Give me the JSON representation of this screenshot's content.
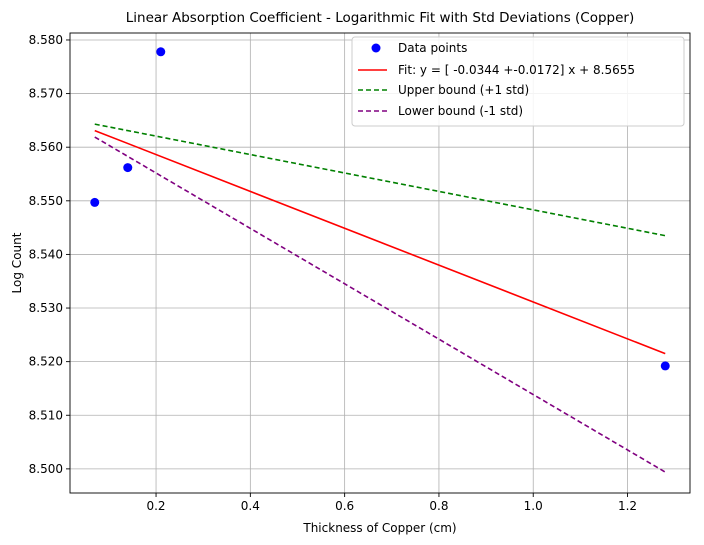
{
  "chart_data": {
    "type": "scatter",
    "title": "Linear Absorption Coefficient - Logarithmic Fit with Std Deviations (Copper)",
    "xlabel": "Thickness of Copper (cm)",
    "ylabel": "Log Count",
    "xlim": [
      0.0175,
      1.3325
    ],
    "ylim": [
      8.4955,
      8.5813
    ],
    "xticks": [
      0.2,
      0.4,
      0.6,
      0.8,
      1.0,
      1.2
    ],
    "xtick_labels": [
      "0.2",
      "0.4",
      "0.6",
      "0.8",
      "1.0",
      "1.2"
    ],
    "yticks": [
      8.5,
      8.51,
      8.52,
      8.53,
      8.54,
      8.55,
      8.56,
      8.57,
      8.58
    ],
    "ytick_labels": [
      "8.500",
      "8.510",
      "8.520",
      "8.530",
      "8.540",
      "8.550",
      "8.560",
      "8.570",
      "8.580"
    ],
    "grid": true,
    "legend_position": "top-right",
    "points": {
      "name": "Data points",
      "color": "#0000ff",
      "x": [
        0.07,
        0.14,
        0.21,
        1.28
      ],
      "y": [
        8.5497,
        8.5562,
        8.5778,
        8.5192
      ]
    },
    "lines": [
      {
        "name": "Fit: y = [ -0.0344 +-0.0172]  x + 8.5655",
        "color": "#ff0000",
        "style": "solid",
        "x": [
          0.07,
          1.28
        ],
        "y": [
          8.5631,
          8.5215
        ]
      },
      {
        "name": "Upper bound (+1 std)",
        "color": "#008000",
        "style": "dashed",
        "x": [
          0.07,
          1.28
        ],
        "y": [
          8.5643,
          8.5435
        ]
      },
      {
        "name": "Lower bound (-1 std)",
        "color": "#800080",
        "style": "dashed",
        "x": [
          0.07,
          1.28
        ],
        "y": [
          8.5619,
          8.4994
        ]
      }
    ]
  }
}
